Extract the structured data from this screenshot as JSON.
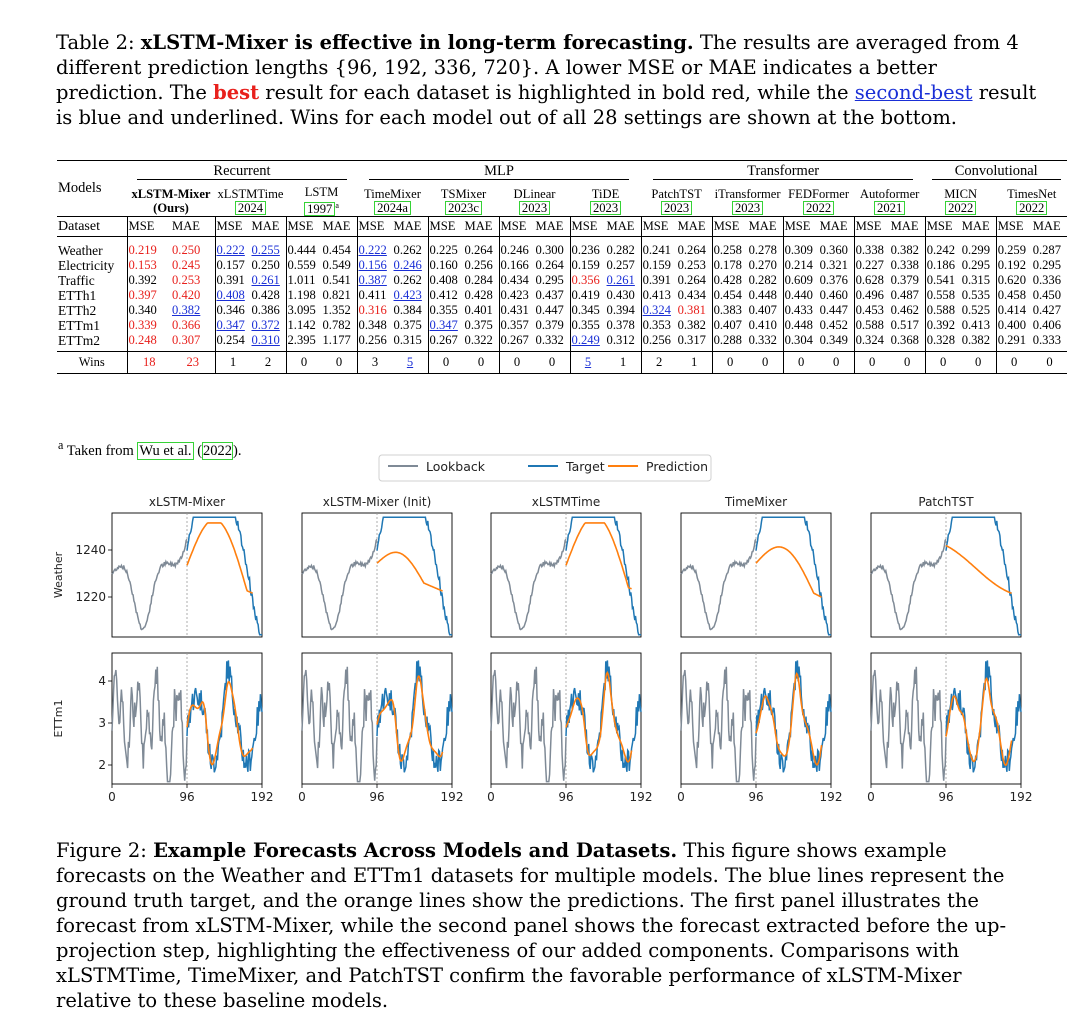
{
  "table_caption": {
    "prefix": "Table 2:",
    "bold": "xLSTM-Mixer is effective in long-term forecasting.",
    "text1": " The results are averaged from 4 different prediction lengths {96, 192, 336, 720}. A lower MSE or MAE indicates a better prediction. The ",
    "best_word": "best",
    "text2": " result for each dataset is highlighted in bold red, while the ",
    "second_word": "second-best",
    "text3": " result is blue and underlined. Wins for each model out of all 28 settings are shown at the bottom."
  },
  "table": {
    "models_label": "Models",
    "dataset_label": "Dataset",
    "mse_label": "MSE",
    "mae_label": "MAE",
    "wins_label": "Wins",
    "groups": [
      {
        "name": "Recurrent",
        "span": 3
      },
      {
        "name": "MLP",
        "span": 4
      },
      {
        "name": "Transformer",
        "span": 4
      },
      {
        "name": "Convolutional",
        "span": 2
      }
    ],
    "models": [
      {
        "name": "xLSTM-Mixer",
        "sub": "(Ours)",
        "year": "",
        "bold": true
      },
      {
        "name": "xLSTMTime",
        "year": "2024"
      },
      {
        "name": "LSTM",
        "year": "1997",
        "sup": "a"
      },
      {
        "name": "TimeMixer",
        "year": "2024a"
      },
      {
        "name": "TSMixer",
        "year": "2023c"
      },
      {
        "name": "DLinear",
        "year": "2023"
      },
      {
        "name": "TiDE",
        "year": "2023"
      },
      {
        "name": "PatchTST",
        "year": "2023"
      },
      {
        "name": "iTransformer",
        "year": "2023"
      },
      {
        "name": "FEDFormer",
        "year": "2022"
      },
      {
        "name": "Autoformer",
        "year": "2021"
      },
      {
        "name": "MICN",
        "year": "2022"
      },
      {
        "name": "TimesNet",
        "year": "2022"
      }
    ],
    "rows": [
      {
        "dataset": "Weather",
        "values": [
          "0.219",
          "0.250",
          "0.222",
          "0.255",
          "0.444",
          "0.454",
          "0.222",
          "0.262",
          "0.225",
          "0.264",
          "0.246",
          "0.300",
          "0.236",
          "0.282",
          "0.241",
          "0.264",
          "0.258",
          "0.278",
          "0.309",
          "0.360",
          "0.338",
          "0.382",
          "0.242",
          "0.299",
          "0.259",
          "0.287"
        ],
        "best": [
          0,
          1
        ],
        "second": [
          2,
          3,
          6
        ]
      },
      {
        "dataset": "Electricity",
        "values": [
          "0.153",
          "0.245",
          "0.157",
          "0.250",
          "0.559",
          "0.549",
          "0.156",
          "0.246",
          "0.160",
          "0.256",
          "0.166",
          "0.264",
          "0.159",
          "0.257",
          "0.159",
          "0.253",
          "0.178",
          "0.270",
          "0.214",
          "0.321",
          "0.227",
          "0.338",
          "0.186",
          "0.295",
          "0.192",
          "0.295"
        ],
        "best": [
          0,
          1
        ],
        "second": [
          6,
          7
        ]
      },
      {
        "dataset": "Traffic",
        "values": [
          "0.392",
          "0.253",
          "0.391",
          "0.261",
          "1.011",
          "0.541",
          "0.387",
          "0.262",
          "0.408",
          "0.284",
          "0.434",
          "0.295",
          "0.356",
          "0.261",
          "0.391",
          "0.264",
          "0.428",
          "0.282",
          "0.609",
          "0.376",
          "0.628",
          "0.379",
          "0.541",
          "0.315",
          "0.620",
          "0.336"
        ],
        "best": [
          1,
          12
        ],
        "second": [
          3,
          6,
          13
        ]
      },
      {
        "dataset": "ETTh1",
        "values": [
          "0.397",
          "0.420",
          "0.408",
          "0.428",
          "1.198",
          "0.821",
          "0.411",
          "0.423",
          "0.412",
          "0.428",
          "0.423",
          "0.437",
          "0.419",
          "0.430",
          "0.413",
          "0.434",
          "0.454",
          "0.448",
          "0.440",
          "0.460",
          "0.496",
          "0.487",
          "0.558",
          "0.535",
          "0.458",
          "0.450"
        ],
        "best": [
          0,
          1
        ],
        "second": [
          2,
          7
        ]
      },
      {
        "dataset": "ETTh2",
        "values": [
          "0.340",
          "0.382",
          "0.346",
          "0.386",
          "3.095",
          "1.352",
          "0.316",
          "0.384",
          "0.355",
          "0.401",
          "0.431",
          "0.447",
          "0.345",
          "0.394",
          "0.324",
          "0.381",
          "0.383",
          "0.407",
          "0.433",
          "0.447",
          "0.453",
          "0.462",
          "0.588",
          "0.525",
          "0.414",
          "0.427"
        ],
        "best": [
          6,
          15
        ],
        "second": [
          1,
          14
        ]
      },
      {
        "dataset": "ETTm1",
        "values": [
          "0.339",
          "0.366",
          "0.347",
          "0.372",
          "1.142",
          "0.782",
          "0.348",
          "0.375",
          "0.347",
          "0.375",
          "0.357",
          "0.379",
          "0.355",
          "0.378",
          "0.353",
          "0.382",
          "0.407",
          "0.410",
          "0.448",
          "0.452",
          "0.588",
          "0.517",
          "0.392",
          "0.413",
          "0.400",
          "0.406"
        ],
        "best": [
          0,
          1
        ],
        "second": [
          2,
          3,
          8
        ]
      },
      {
        "dataset": "ETTm2",
        "values": [
          "0.248",
          "0.307",
          "0.254",
          "0.310",
          "2.395",
          "1.177",
          "0.256",
          "0.315",
          "0.267",
          "0.322",
          "0.267",
          "0.332",
          "0.249",
          "0.312",
          "0.256",
          "0.317",
          "0.288",
          "0.332",
          "0.304",
          "0.349",
          "0.324",
          "0.368",
          "0.328",
          "0.382",
          "0.291",
          "0.333"
        ],
        "best": [
          0,
          1
        ],
        "second": [
          3,
          12
        ]
      }
    ],
    "wins": [
      "18",
      "23",
      "1",
      "2",
      "0",
      "0",
      "3",
      "5",
      "0",
      "0",
      "0",
      "0",
      "5",
      "1",
      "2",
      "1",
      "0",
      "0",
      "0",
      "0",
      "0",
      "0",
      "0",
      "0",
      "0",
      "0"
    ],
    "wins_best": [
      0,
      1
    ],
    "wins_second": [
      7,
      12
    ]
  },
  "footnote": {
    "mark": "a",
    "text": " Taken from ",
    "ref": "Wu et al.",
    "year": "2022",
    "end": ")."
  },
  "figure": {
    "legend": [
      {
        "label": "Lookback",
        "color": "#7f8a96"
      },
      {
        "label": "Target",
        "color": "#1f77b4"
      },
      {
        "label": "Prediction",
        "color": "#ff7f0e"
      }
    ],
    "panel_titles": [
      "xLSTM-Mixer",
      "xLSTM-Mixer (Init)",
      "xLSTMTime",
      "TimeMixer",
      "PatchTST"
    ],
    "row_labels": [
      "Weather",
      "ETTm1"
    ],
    "weather_yticks": [
      "1240",
      "1220"
    ],
    "ettm1_yticks": [
      "4",
      "3",
      "2"
    ],
    "xticks": [
      "0",
      "96",
      "192"
    ]
  },
  "fig_caption": {
    "prefix": "Figure 2:",
    "bold": "Example Forecasts Across Models and Datasets.",
    "text": " This figure shows example forecasts on the Weather and ETTm1 datasets for multiple models. The blue lines represent the ground truth target, and the orange lines show the predictions. The first panel illustrates the forecast from xLSTM-Mixer, while the second panel shows the forecast extracted before the up-projection step, highlighting the effectiveness of our added components. Comparisons with xLSTMTime, TimeMixer, and PatchTST confirm the favorable performance of xLSTM-Mixer relative to these baseline models."
  }
}
